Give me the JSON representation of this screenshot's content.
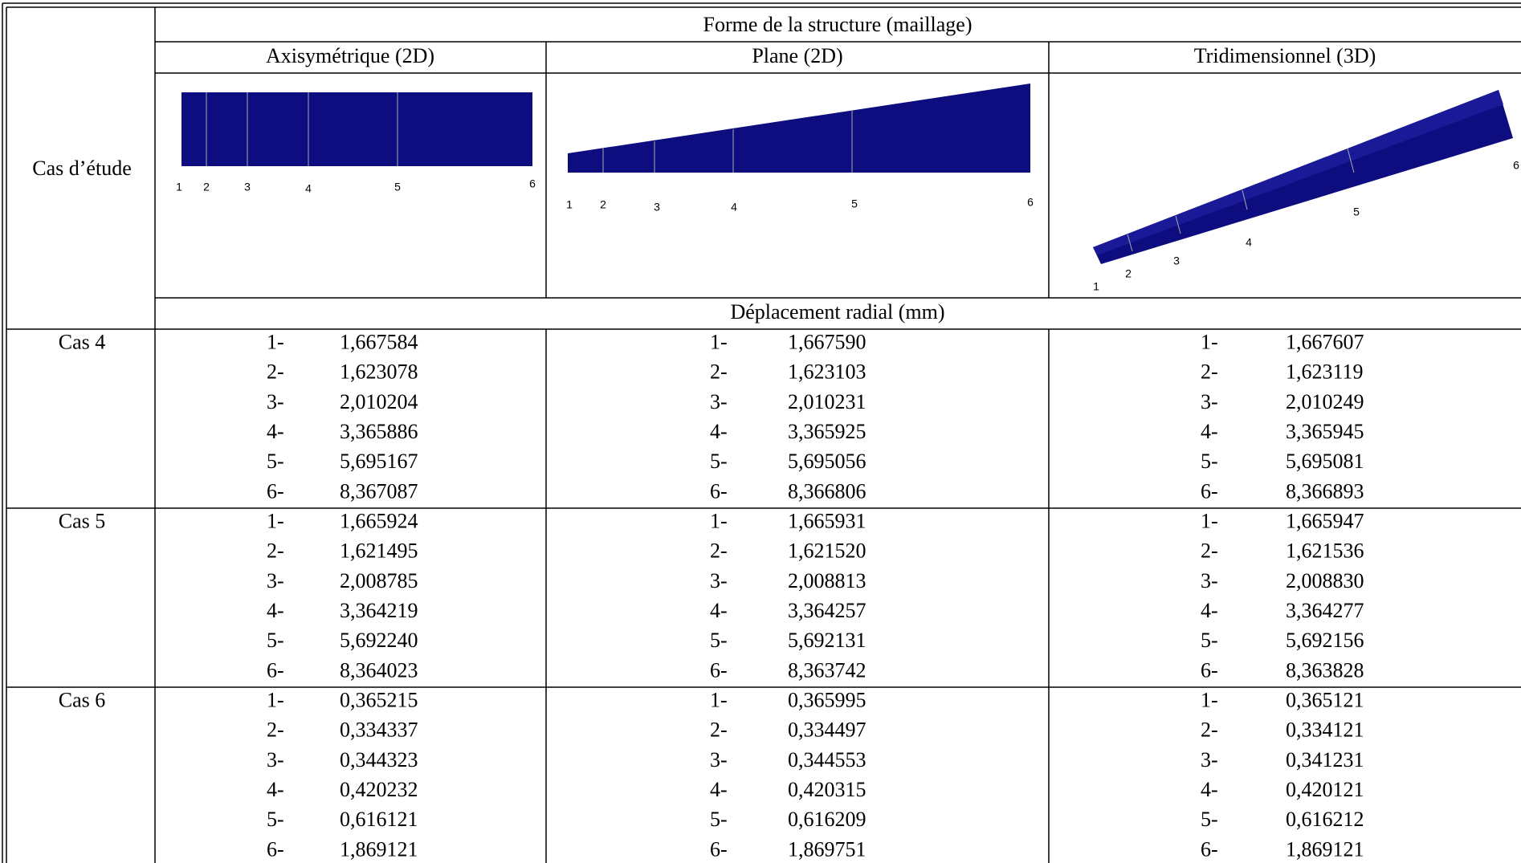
{
  "header": {
    "title": "Forme de la structure (maillage)",
    "row_label": "Cas d’étude",
    "columns": [
      "Axisymétrique (2D)",
      "Plane (2D)",
      "Tridimensionnel (3D)"
    ],
    "subtitle": "Déplacement radial (mm)"
  },
  "meshes": [
    {
      "node_labels": [
        "1",
        "2",
        "3",
        "4",
        "5",
        "6"
      ]
    },
    {
      "node_labels": [
        "1",
        "2",
        "3",
        "4",
        "5",
        "6"
      ]
    },
    {
      "node_labels": [
        "1",
        "2",
        "3",
        "4",
        "5",
        "6"
      ]
    }
  ],
  "rows": [
    {
      "label": "Cas 4",
      "columns": [
        [
          [
            "1-",
            "1,667584"
          ],
          [
            "2-",
            "1,623078"
          ],
          [
            "3-",
            "2,010204"
          ],
          [
            "4-",
            "3,365886"
          ],
          [
            "5-",
            "5,695167"
          ],
          [
            "6-",
            "8,367087"
          ]
        ],
        [
          [
            "1-",
            "1,667590"
          ],
          [
            "2-",
            "1,623103"
          ],
          [
            "3-",
            "2,010231"
          ],
          [
            "4-",
            "3,365925"
          ],
          [
            "5-",
            "5,695056"
          ],
          [
            "6-",
            "8,366806"
          ]
        ],
        [
          [
            "1-",
            "1,667607"
          ],
          [
            "2-",
            "1,623119"
          ],
          [
            "3-",
            "2,010249"
          ],
          [
            "4-",
            "3,365945"
          ],
          [
            "5-",
            "5,695081"
          ],
          [
            "6-",
            "8,366893"
          ]
        ]
      ]
    },
    {
      "label": "Cas 5",
      "columns": [
        [
          [
            "1-",
            "1,665924"
          ],
          [
            "2-",
            "1,621495"
          ],
          [
            "3-",
            "2,008785"
          ],
          [
            "4-",
            "3,364219"
          ],
          [
            "5-",
            "5,692240"
          ],
          [
            "6-",
            "8,364023"
          ]
        ],
        [
          [
            "1-",
            "1,665931"
          ],
          [
            "2-",
            "1,621520"
          ],
          [
            "3-",
            "2,008813"
          ],
          [
            "4-",
            "3,364257"
          ],
          [
            "5-",
            "5,692131"
          ],
          [
            "6-",
            "8,363742"
          ]
        ],
        [
          [
            "1-",
            "1,665947"
          ],
          [
            "2-",
            "1,621536"
          ],
          [
            "3-",
            "2,008830"
          ],
          [
            "4-",
            "3,364277"
          ],
          [
            "5-",
            "5,692156"
          ],
          [
            "6-",
            "8,363828"
          ]
        ]
      ]
    },
    {
      "label": "Cas 6",
      "columns": [
        [
          [
            "1-",
            "0,365215"
          ],
          [
            "2-",
            "0,334337"
          ],
          [
            "3-",
            "0,344323"
          ],
          [
            "4-",
            "0,420232"
          ],
          [
            "5-",
            "0,616121"
          ],
          [
            "6-",
            "1,869121"
          ]
        ],
        [
          [
            "1-",
            "0,365995"
          ],
          [
            "2-",
            "0,334497"
          ],
          [
            "3-",
            "0,344553"
          ],
          [
            "4-",
            "0,420315"
          ],
          [
            "5-",
            "0,616209"
          ],
          [
            "6-",
            "1,869751"
          ]
        ],
        [
          [
            "1-",
            "0,365121"
          ],
          [
            "2-",
            "0,334121"
          ],
          [
            "3-",
            "0,341231"
          ],
          [
            "4-",
            "0,420121"
          ],
          [
            "5-",
            "0,616212"
          ],
          [
            "6-",
            "1,869121"
          ]
        ]
      ]
    }
  ]
}
